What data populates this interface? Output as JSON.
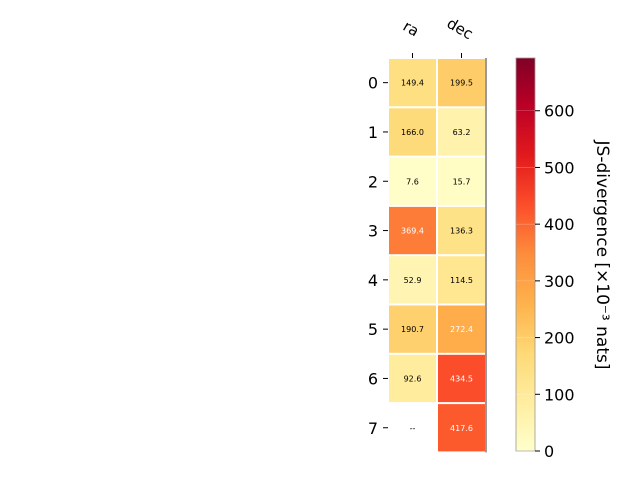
{
  "chart_data": {
    "type": "heatmap",
    "x_categories": [
      "ra",
      "dec"
    ],
    "y_categories": [
      "0",
      "1",
      "2",
      "3",
      "4",
      "5",
      "6",
      "7"
    ],
    "values": [
      [
        149.4,
        199.5
      ],
      [
        166.0,
        63.2
      ],
      [
        7.6,
        15.7
      ],
      [
        369.4,
        136.3
      ],
      [
        52.9,
        114.5
      ],
      [
        190.7,
        272.4
      ],
      [
        92.6,
        434.5
      ],
      [
        null,
        417.6
      ]
    ],
    "cell_labels": [
      [
        "149.4",
        "199.5"
      ],
      [
        "166.0",
        "63.2"
      ],
      [
        "7.6",
        "15.7"
      ],
      [
        "369.4",
        "136.3"
      ],
      [
        "52.9",
        "114.5"
      ],
      [
        "190.7",
        "272.4"
      ],
      [
        "92.6",
        "434.5"
      ],
      [
        "--",
        "417.6"
      ]
    ],
    "colorbar": {
      "label": "JS-divergence [×10⁻³ nats]",
      "ticks": [
        "0",
        "100",
        "200",
        "300",
        "400",
        "500",
        "600"
      ],
      "tick_values": [
        0,
        100,
        200,
        300,
        400,
        500,
        600
      ],
      "range": [
        0,
        693
      ],
      "colormap": "YlOrRd"
    },
    "colors": {
      "colormap_stops": [
        "#ffffcc",
        "#ffeda0",
        "#fed976",
        "#feb24c",
        "#fd8d3c",
        "#fc4e2a",
        "#e31a1c",
        "#bd0026",
        "#800026"
      ],
      "missing_cell": "#ffffff",
      "grid_line": "#ffffff",
      "text_dark": "#000000",
      "text_light": "#ffffff"
    }
  }
}
